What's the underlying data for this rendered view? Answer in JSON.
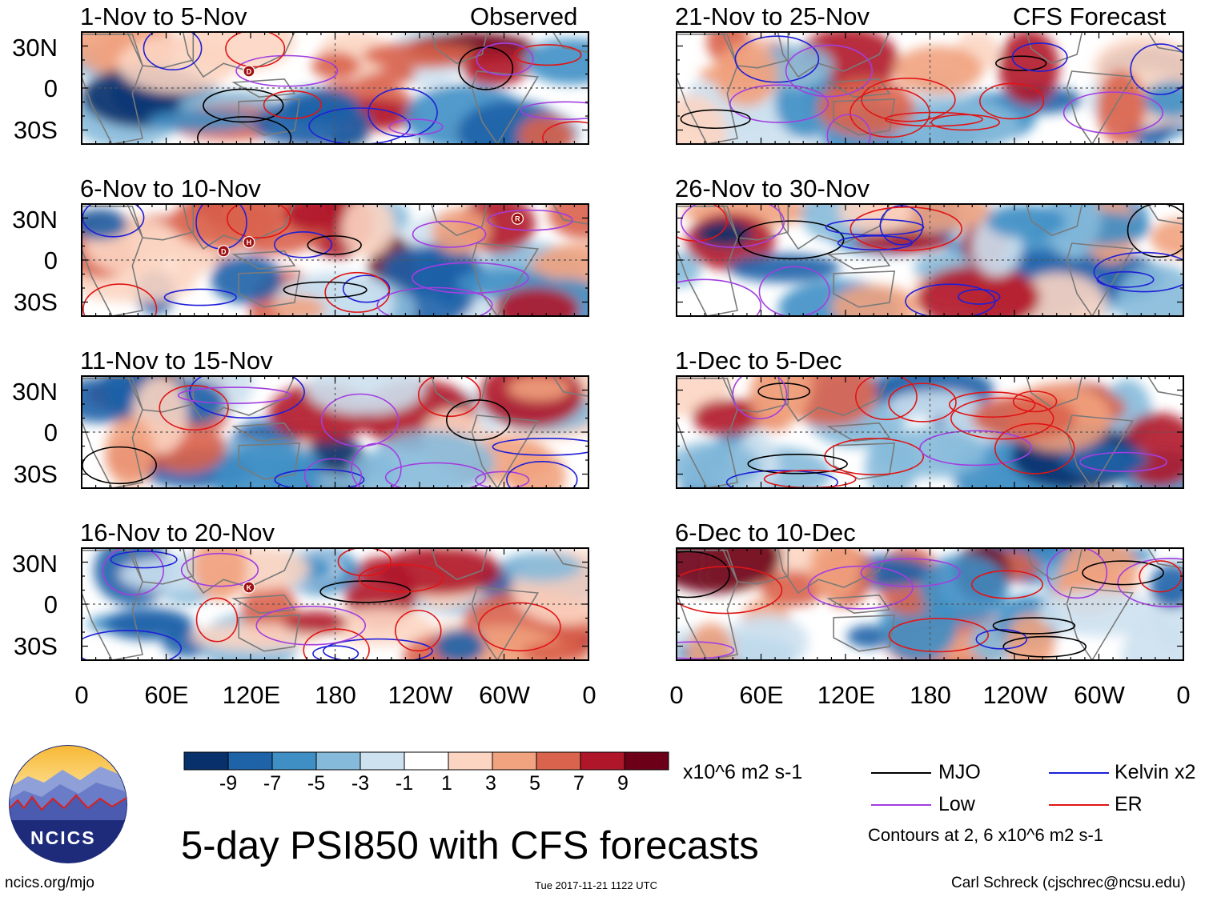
{
  "panels": [
    {
      "period": "1-Nov to 5-Nov",
      "label": "Observed"
    },
    {
      "period": "21-Nov to 25-Nov",
      "label": "CFS Forecast"
    },
    {
      "period": "6-Nov to 10-Nov",
      "label": ""
    },
    {
      "period": "26-Nov to 30-Nov",
      "label": ""
    },
    {
      "period": "11-Nov to 15-Nov",
      "label": ""
    },
    {
      "period": "1-Dec to 5-Dec",
      "label": ""
    },
    {
      "period": "16-Nov to 20-Nov",
      "label": ""
    },
    {
      "period": "6-Dec to 10-Dec",
      "label": ""
    }
  ],
  "y_ticks": [
    "30N",
    "0",
    "30S"
  ],
  "x_ticks": [
    "0",
    "60E",
    "120E",
    "180",
    "120W",
    "60W",
    "0"
  ],
  "colorbar": {
    "labels": [
      "-9",
      "-7",
      "-5",
      "-3",
      "-1",
      "1",
      "3",
      "5",
      "7",
      "9"
    ],
    "colors": [
      "#08306b",
      "#1e62a8",
      "#3f8fc5",
      "#86bada",
      "#cde1ef",
      "#ffffff",
      "#fcd5c2",
      "#f1a27e",
      "#d9634d",
      "#b0162a",
      "#6b0018"
    ],
    "units": "x10^6 m2 s-1"
  },
  "legend": {
    "items": [
      {
        "label": "MJO",
        "color": "#000000"
      },
      {
        "label": "Kelvin x2",
        "color": "#1f1fd6"
      },
      {
        "label": "Low",
        "color": "#a23ee0"
      },
      {
        "label": "ER",
        "color": "#e01515"
      }
    ],
    "contours_note": "Contours at 2, 6 x10^6 m2 s-1"
  },
  "title": "5-day PSI850 with CFS forecasts",
  "logo_text": "NCICS",
  "footer": {
    "url": "ncics.org/mjo",
    "timestamp": "Tue 2017-11-21 1122 UTC",
    "credit": "Carl Schreck (cjschrec@ncsu.edu)"
  },
  "storm_markers": [
    {
      "panel": 0,
      "letter": "D"
    },
    {
      "panel": 2,
      "letter": "D"
    },
    {
      "panel": 2,
      "letter": "H"
    },
    {
      "panel": 2,
      "letter": "R"
    },
    {
      "panel": 6,
      "letter": "K"
    }
  ]
}
